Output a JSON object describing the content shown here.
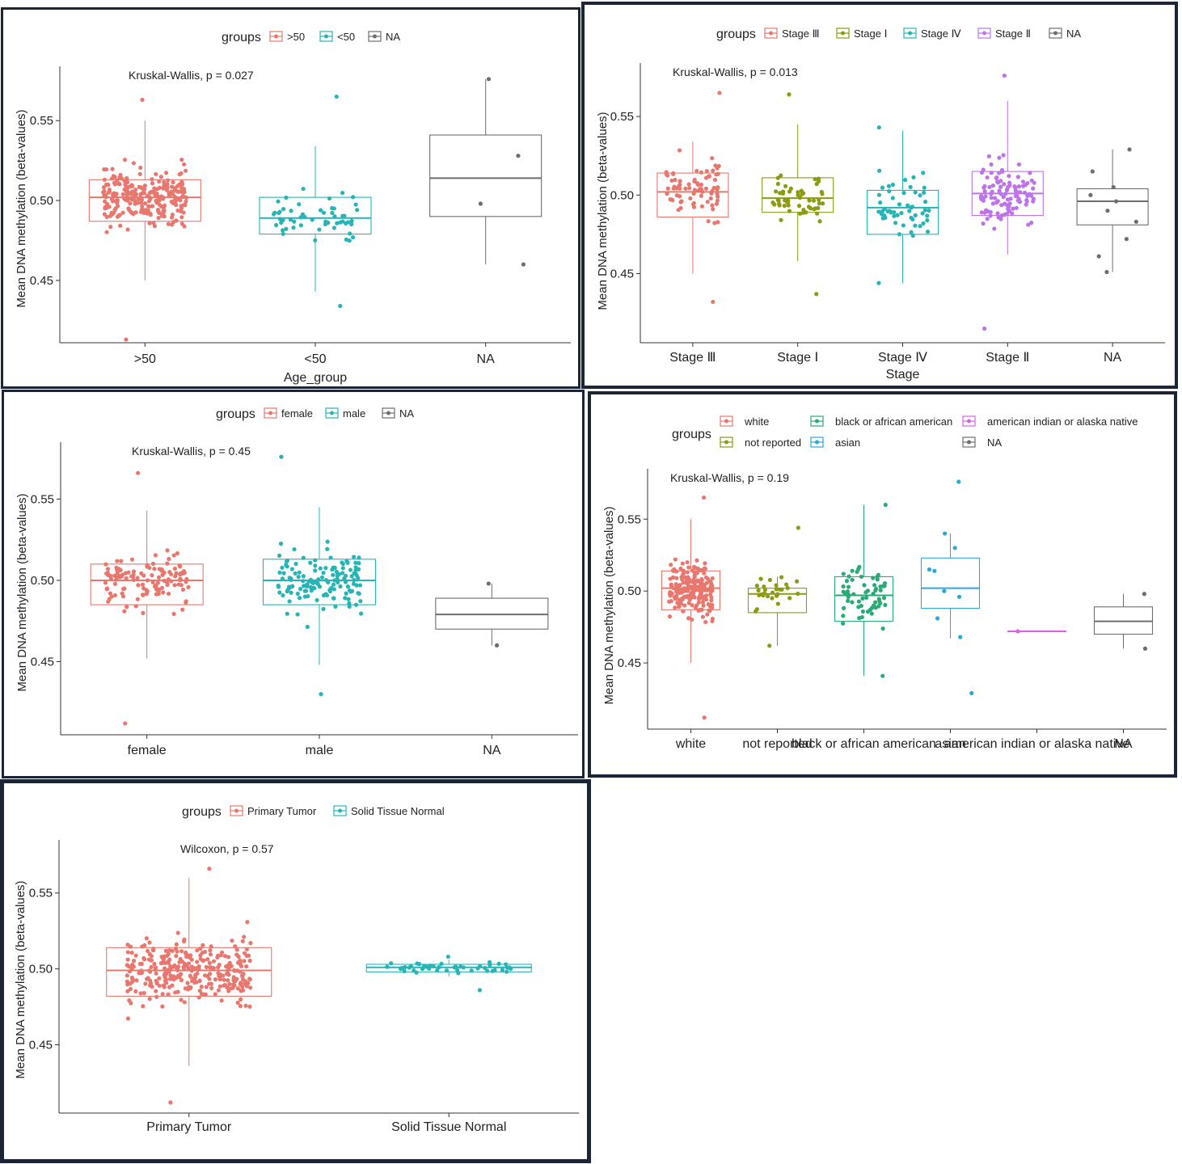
{
  "colors": {
    "red": "#E8776E",
    "cyan": "#27B4B7",
    "gray": "#6E6E6E",
    "olive": "#8C9A14",
    "purple": "#BE74E8",
    "green": "#2AAA77",
    "blue": "#2AA7DD",
    "magenta": "#D664E0"
  },
  "chart_data": [
    {
      "type": "boxplot",
      "legend_title": "groups",
      "categories": [
        ">50",
        "<50",
        "NA"
      ],
      "legend": [
        ">50",
        "<50",
        "NA"
      ],
      "series_colors": [
        "red",
        "cyan",
        "gray"
      ],
      "xlabel": "Age_group",
      "ylabel": "Mean DNA methylation (beta-values)",
      "annotation": "Kruskal-Wallis, p = 0.027",
      "yticks": [
        "0.45",
        "0.50",
        "0.55"
      ],
      "ylim": [
        0.411,
        0.584
      ],
      "grid": false,
      "legend_position": "top",
      "boxes": [
        {
          "q1": 0.487,
          "median": 0.502,
          "q3": 0.513,
          "low": 0.45,
          "high": 0.55,
          "n": 260,
          "min": 0.413,
          "max": 0.563
        },
        {
          "q1": 0.479,
          "median": 0.489,
          "q3": 0.502,
          "low": 0.443,
          "high": 0.534,
          "n": 55,
          "min": 0.434,
          "max": 0.565
        },
        {
          "q1": 0.49,
          "median": 0.514,
          "q3": 0.541,
          "low": 0.46,
          "high": 0.576,
          "n": 0,
          "min": 0.46,
          "max": 0.576
        }
      ],
      "points": [
        [],
        [],
        [
          [
            0.576,
            0.576
          ],
          [
            0.528,
            0.528
          ],
          [
            0.498,
            0.498
          ],
          [
            0.46,
            0.46
          ]
        ]
      ]
    },
    {
      "type": "boxplot",
      "legend_title": "groups",
      "categories": [
        "Stage Ⅲ",
        "Stage Ⅰ",
        "Stage Ⅳ",
        "Stage Ⅱ",
        "NA"
      ],
      "legend": [
        "Stage Ⅲ",
        "Stage Ⅰ",
        "Stage Ⅳ",
        "Stage Ⅱ",
        "NA"
      ],
      "series_colors": [
        "red",
        "olive",
        "cyan",
        "purple",
        "gray"
      ],
      "xlabel": "Stage",
      "ylabel": "Mean DNA methylation (beta-values)",
      "annotation": "Kruskal-Wallis, p = 0.013",
      "yticks": [
        "0.45",
        "0.50",
        "0.55"
      ],
      "ylim": [
        0.406,
        0.584
      ],
      "grid": false,
      "legend_position": "top",
      "boxes": [
        {
          "q1": 0.486,
          "median": 0.502,
          "q3": 0.514,
          "low": 0.45,
          "high": 0.534,
          "n": 80,
          "min": 0.432,
          "max": 0.565
        },
        {
          "q1": 0.489,
          "median": 0.498,
          "q3": 0.511,
          "low": 0.458,
          "high": 0.545,
          "n": 55,
          "min": 0.437,
          "max": 0.564
        },
        {
          "q1": 0.475,
          "median": 0.492,
          "q3": 0.503,
          "low": 0.444,
          "high": 0.541,
          "n": 55,
          "min": 0.444,
          "max": 0.543
        },
        {
          "q1": 0.487,
          "median": 0.501,
          "q3": 0.515,
          "low": 0.462,
          "high": 0.56,
          "n": 110,
          "min": 0.415,
          "max": 0.576
        },
        {
          "q1": 0.481,
          "median": 0.496,
          "q3": 0.504,
          "low": 0.451,
          "high": 0.529,
          "n": 0,
          "min": 0.451,
          "max": 0.529
        }
      ],
      "points": [
        [],
        [],
        [],
        [],
        [
          [
            0.529,
            0.529
          ],
          [
            0.515,
            0.515
          ],
          [
            0.505,
            0.505
          ],
          [
            0.5,
            0.5
          ],
          [
            0.496,
            0.496
          ],
          [
            0.49,
            0.49
          ],
          [
            0.483,
            0.483
          ],
          [
            0.472,
            0.472
          ],
          [
            0.461,
            0.461
          ],
          [
            0.451,
            0.451
          ]
        ]
      ]
    },
    {
      "type": "boxplot",
      "legend_title": "groups",
      "categories": [
        "female",
        "male",
        "NA"
      ],
      "legend": [
        "female",
        "male",
        "NA"
      ],
      "series_colors": [
        "red",
        "cyan",
        "gray"
      ],
      "xlabel": "",
      "ylabel": "Mean DNA methylation (beta-values)",
      "annotation": "Kruskal-Wallis, p = 0.45",
      "yticks": [
        "0.45",
        "0.50",
        "0.55"
      ],
      "ylim": [
        0.405,
        0.585
      ],
      "grid": false,
      "legend_position": "top",
      "boxes": [
        {
          "q1": 0.485,
          "median": 0.5,
          "q3": 0.51,
          "low": 0.452,
          "high": 0.543,
          "n": 130,
          "min": 0.412,
          "max": 0.566
        },
        {
          "q1": 0.485,
          "median": 0.5,
          "q3": 0.513,
          "low": 0.448,
          "high": 0.545,
          "n": 140,
          "min": 0.43,
          "max": 0.576
        },
        {
          "q1": 0.47,
          "median": 0.479,
          "q3": 0.489,
          "low": 0.46,
          "high": 0.498,
          "n": 0,
          "min": 0.46,
          "max": 0.498
        }
      ],
      "points": [
        [],
        [],
        [
          [
            0.498,
            0.498
          ],
          [
            0.46,
            0.46
          ]
        ]
      ]
    },
    {
      "type": "boxplot",
      "legend_title": "groups",
      "categories": [
        "white",
        "not reported",
        "black or african american",
        "asian",
        "american indian or alaska native",
        "NA"
      ],
      "legend": [
        "white",
        "not reported",
        "black or african american",
        "asian",
        "american indian or alaska native",
        "NA"
      ],
      "series_colors": [
        "red",
        "olive",
        "green",
        "blue",
        "magenta",
        "gray"
      ],
      "xlabel": "",
      "ylabel": "Mean DNA methylation (beta-values)",
      "annotation": "Kruskal-Wallis, p = 0.19",
      "yticks": [
        "0.45",
        "0.50",
        "0.55"
      ],
      "ylim": [
        0.404,
        0.585
      ],
      "grid": false,
      "legend_position": "top",
      "boxes": [
        {
          "q1": 0.487,
          "median": 0.502,
          "q3": 0.514,
          "low": 0.45,
          "high": 0.55,
          "n": 200,
          "min": 0.412,
          "max": 0.565
        },
        {
          "q1": 0.485,
          "median": 0.498,
          "q3": 0.502,
          "low": 0.462,
          "high": 0.51,
          "n": 28,
          "min": 0.462,
          "max": 0.544
        },
        {
          "q1": 0.479,
          "median": 0.497,
          "q3": 0.51,
          "low": 0.441,
          "high": 0.56,
          "n": 60,
          "min": 0.441,
          "max": 0.56
        },
        {
          "q1": 0.488,
          "median": 0.502,
          "q3": 0.523,
          "low": 0.467,
          "high": 0.54,
          "n": 0,
          "min": 0.429,
          "max": 0.576
        },
        {
          "q1": 0.472,
          "median": 0.472,
          "q3": 0.472,
          "low": 0.472,
          "high": 0.472,
          "n": 0,
          "min": 0.472,
          "max": 0.472
        },
        {
          "q1": 0.47,
          "median": 0.479,
          "q3": 0.489,
          "low": 0.46,
          "high": 0.498,
          "n": 0,
          "min": 0.46,
          "max": 0.498
        }
      ],
      "points": [
        [],
        [],
        [],
        [
          [
            0.576,
            0.576
          ],
          [
            0.54,
            0.54
          ],
          [
            0.53,
            0.53
          ],
          [
            0.515,
            0.515
          ],
          [
            0.514,
            0.514
          ],
          [
            0.5,
            0.5
          ],
          [
            0.496,
            0.496
          ],
          [
            0.481,
            0.481
          ],
          [
            0.468,
            0.468
          ],
          [
            0.429,
            0.429
          ]
        ],
        [
          [
            0.472,
            0.472
          ]
        ],
        [
          [
            0.498,
            0.498
          ],
          [
            0.46,
            0.46
          ]
        ]
      ]
    },
    {
      "type": "boxplot",
      "legend_title": "groups",
      "categories": [
        "Primary Tumor",
        "Solid Tissue Normal"
      ],
      "legend": [
        "Primary Tumor",
        "Solid Tissue Normal"
      ],
      "series_colors": [
        "red",
        "cyan"
      ],
      "xlabel": "",
      "ylabel": "Mean DNA methylation (beta-values)",
      "annotation": "Wilcoxon, p = 0.57",
      "yticks": [
        "0.45",
        "0.50",
        "0.55"
      ],
      "ylim": [
        0.405,
        0.585
      ],
      "grid": false,
      "legend_position": "top",
      "boxes": [
        {
          "q1": 0.482,
          "median": 0.499,
          "q3": 0.514,
          "low": 0.436,
          "high": 0.56,
          "n": 320,
          "min": 0.412,
          "max": 0.566
        },
        {
          "q1": 0.498,
          "median": 0.501,
          "q3": 0.503,
          "low": 0.495,
          "high": 0.506,
          "n": 45,
          "min": 0.486,
          "max": 0.508
        }
      ],
      "points": [
        [],
        []
      ]
    }
  ]
}
